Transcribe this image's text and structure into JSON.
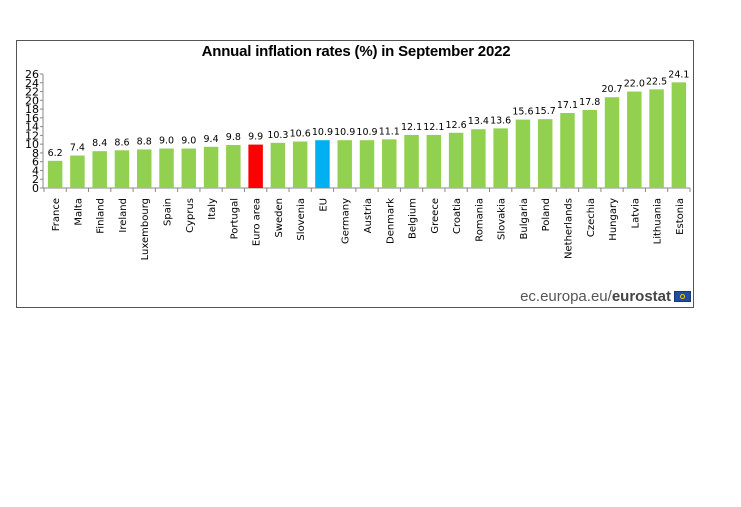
{
  "chart_data": {
    "type": "bar",
    "title": "Annual inflation rates (%) in September 2022",
    "xlabel": "",
    "ylabel": "",
    "ylim": [
      0,
      26
    ],
    "yticks": [
      0,
      2,
      4,
      6,
      8,
      10,
      12,
      14,
      16,
      18,
      20,
      22,
      24,
      26
    ],
    "grid": false,
    "legend": "none",
    "categories": [
      "France",
      "Malta",
      "Finland",
      "Ireland",
      "Luxembourg",
      "Spain",
      "Cyprus",
      "Italy",
      "Portugal",
      "Euro area",
      "Sweden",
      "Slovenia",
      "EU",
      "Germany",
      "Austria",
      "Denmark",
      "Belgium",
      "Greece",
      "Croatia",
      "Romania",
      "Slovakia",
      "Bulgaria",
      "Poland",
      "Netherlands",
      "Czechia",
      "Hungary",
      "Latvia",
      "Lithuania",
      "Estonia"
    ],
    "values": [
      6.2,
      7.4,
      8.4,
      8.6,
      8.8,
      9.0,
      9.0,
      9.4,
      9.8,
      9.9,
      10.3,
      10.6,
      10.9,
      10.9,
      10.9,
      11.1,
      12.1,
      12.1,
      12.6,
      13.4,
      13.6,
      15.6,
      15.7,
      17.1,
      17.8,
      20.7,
      22.0,
      22.5,
      24.1
    ],
    "data_labels": [
      "6.2",
      "7.4",
      "8.4",
      "8.6",
      "8.8",
      "9.0",
      "9.0",
      "9.4",
      "9.8",
      "9.9",
      "10.3",
      "10.6",
      "10.9",
      "10.9",
      "10.9",
      "11.1",
      "12.1",
      "12.1",
      "12.6",
      "13.4",
      "13.6",
      "15.6",
      "15.7",
      "17.1",
      "17.8",
      "20.7",
      "22.0",
      "22.5",
      "24.1"
    ],
    "colors": {
      "default": "#92d050",
      "highlight": {
        "Euro area": "#ff0000",
        "EU": "#00b0f0"
      }
    }
  },
  "footer": {
    "source_plain": "ec.europa.eu/",
    "source_bold": "eurostat"
  }
}
